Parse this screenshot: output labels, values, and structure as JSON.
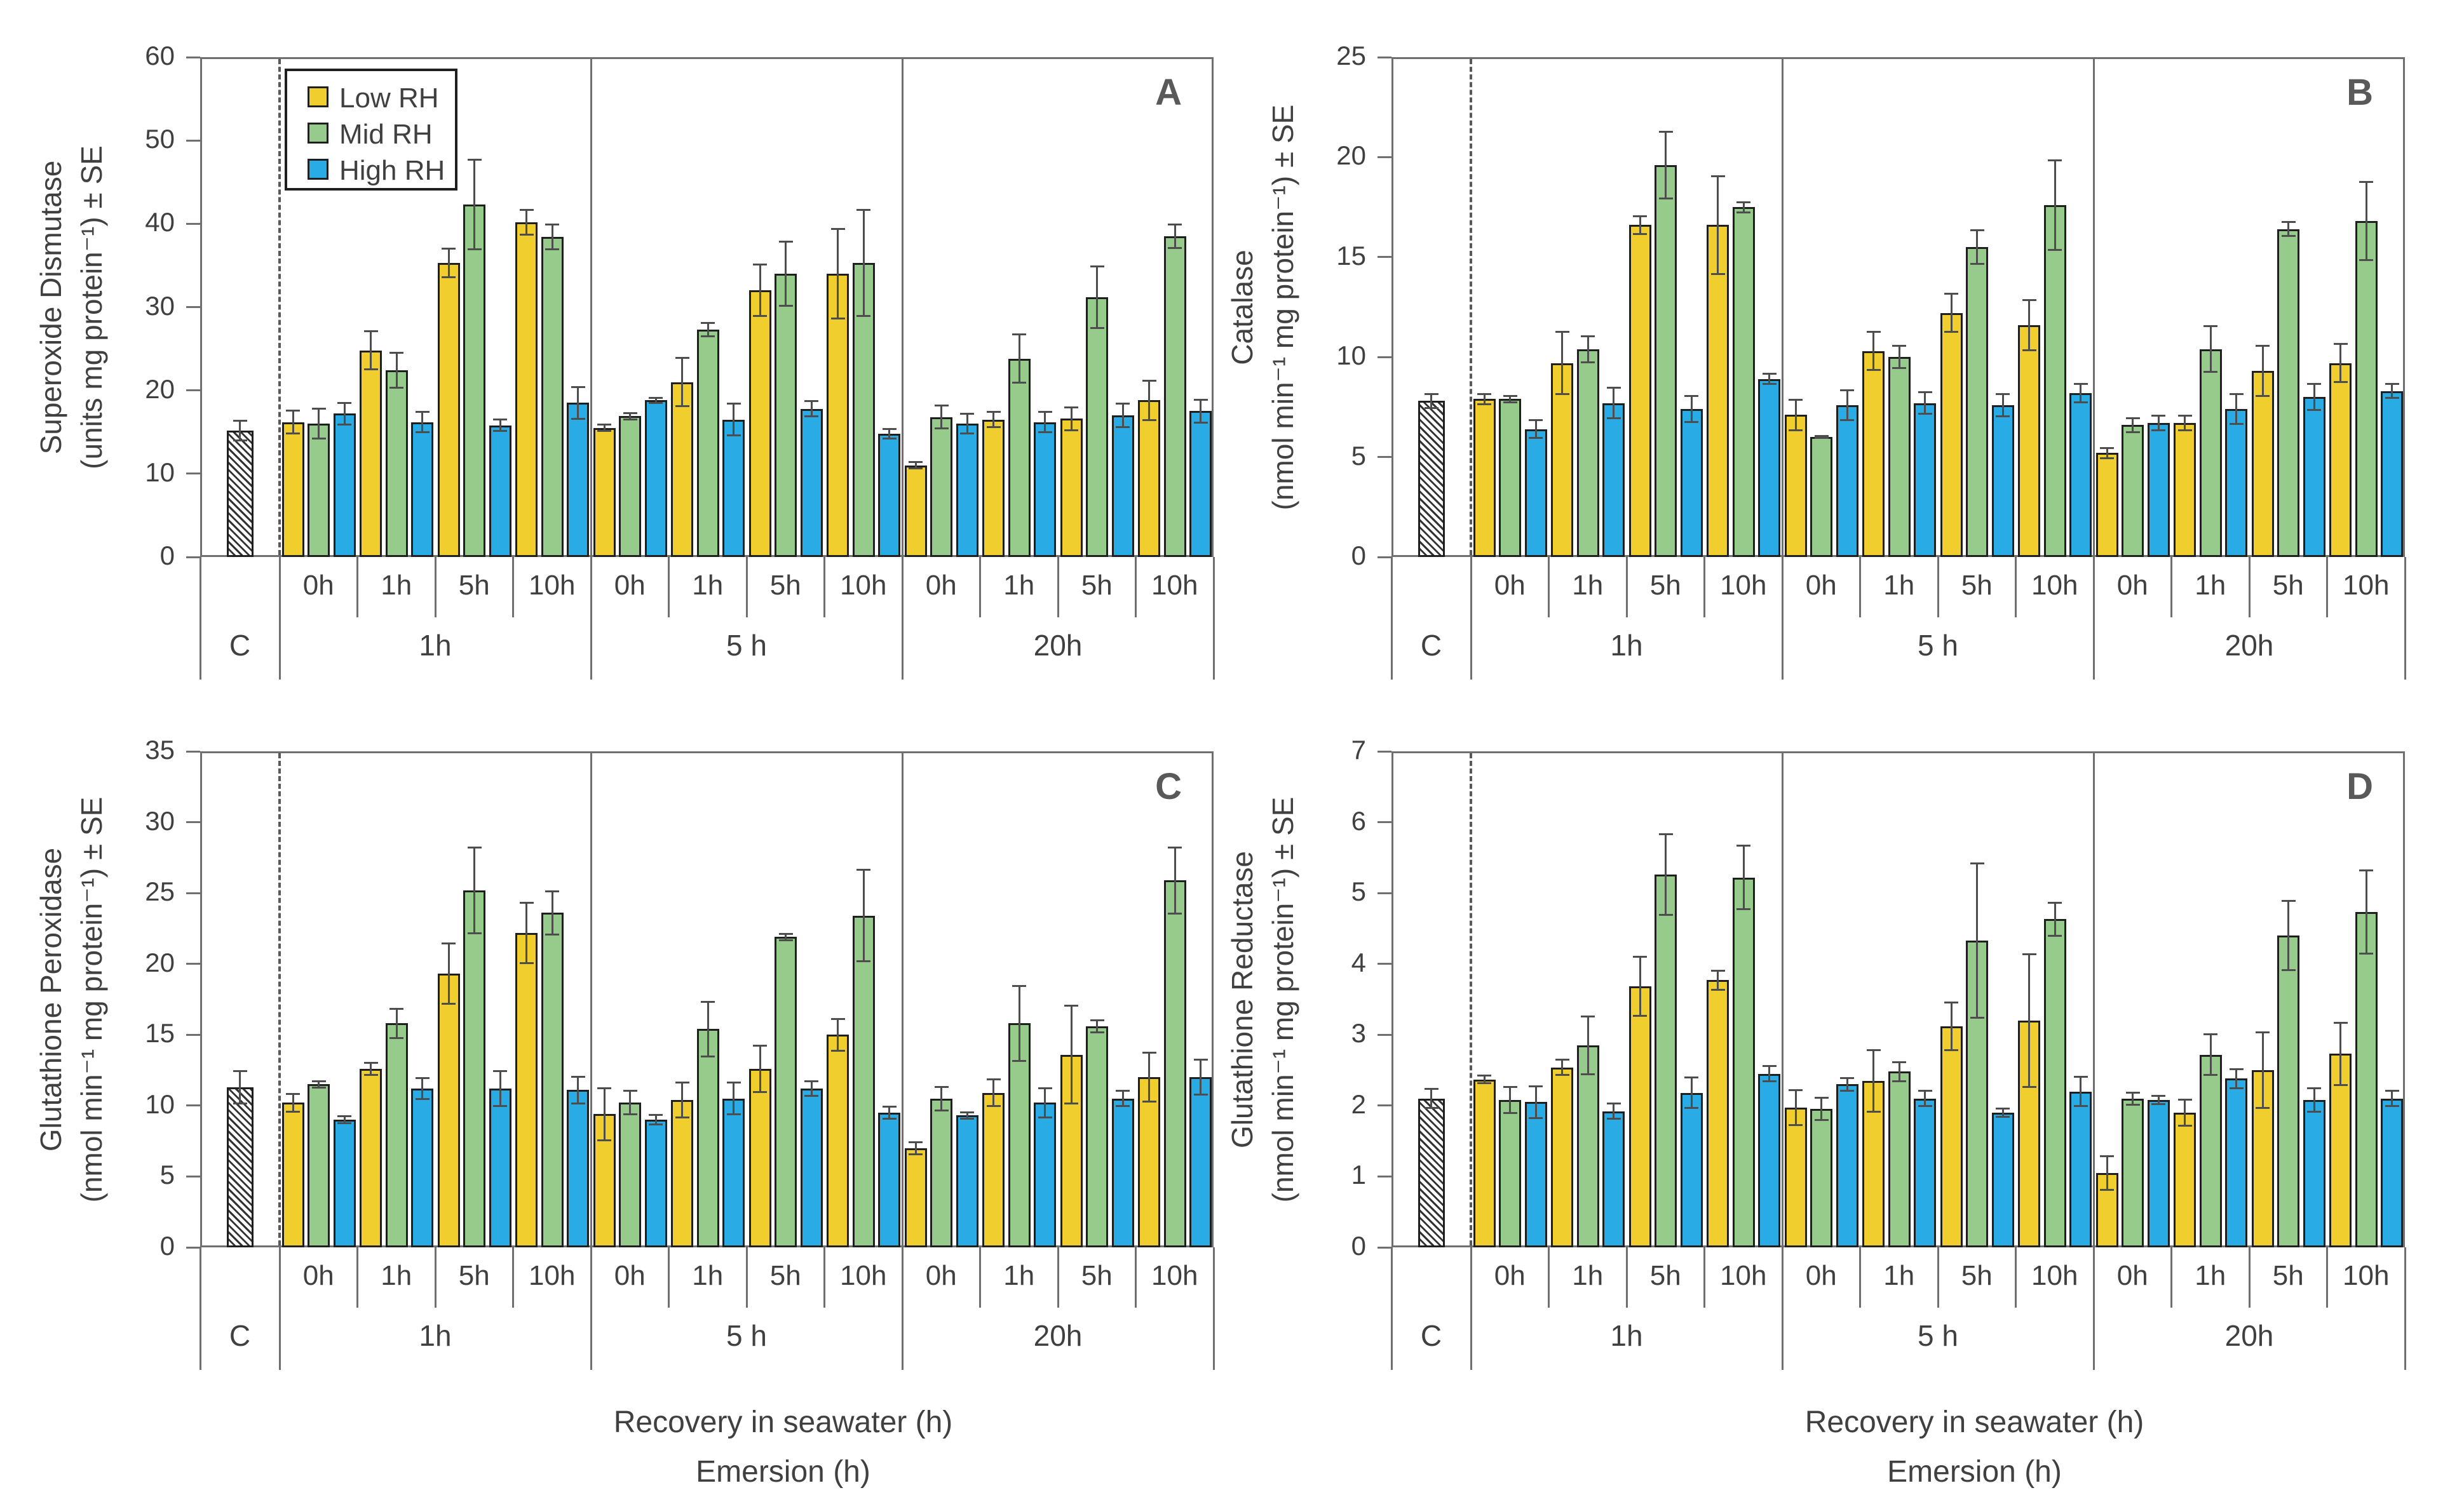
{
  "figure": {
    "control_label": "C",
    "recovery_labels": [
      "0h",
      "1h",
      "5h",
      "10h"
    ],
    "emersion_labels": [
      "1h",
      "5 h",
      "20h"
    ],
    "xtitle_line1": "Recovery in seawater (h)",
    "xtitle_line2": "Emersion (h)",
    "legend": {
      "items": [
        {
          "label": "Low RH",
          "color": "#F0CE2E"
        },
        {
          "label": "Mid RH",
          "color": "#97CB8C"
        },
        {
          "label": "High RH",
          "color": "#29ACE5"
        }
      ]
    },
    "colors": {
      "axis": "#6F6F6F",
      "text": "#404040",
      "panel_letter": "#595959",
      "error_bar": "#4D4D4D",
      "bar_border": "#1F1F1F"
    }
  },
  "chart_data": [
    {
      "type": "bar",
      "letter": "A",
      "ylabel": [
        "Superoxide Dismutase",
        "(units mg protein⁻¹) ± SE"
      ],
      "ylim": [
        0,
        60
      ],
      "ytick_step": 10,
      "series_names": [
        "Low RH",
        "Mid RH",
        "High RH"
      ],
      "recovery": [
        "0h",
        "1h",
        "5h",
        "10h"
      ],
      "control": {
        "label": "C",
        "value": 15.2,
        "se": 1.3
      },
      "groups": [
        {
          "emersion": "1h",
          "low": {
            "values": [
              16.2,
              24.8,
              35.3,
              40.2
            ],
            "se": [
              1.5,
              2.4,
              1.8,
              1.6
            ]
          },
          "mid": {
            "values": [
              16.0,
              22.4,
              42.3,
              38.4
            ],
            "se": [
              1.9,
              2.2,
              5.5,
              1.6
            ]
          },
          "high": {
            "values": [
              17.2,
              16.2,
              15.8,
              18.5
            ],
            "se": [
              1.4,
              1.3,
              0.8,
              2.0
            ]
          }
        },
        {
          "emersion": "5 h",
          "low": {
            "values": [
              15.5,
              21.0,
              32.0,
              34.0
            ],
            "se": [
              0.5,
              3.0,
              3.2,
              5.5
            ]
          },
          "mid": {
            "values": [
              16.9,
              27.3,
              34.0,
              35.3
            ],
            "se": [
              0.5,
              0.9,
              4.0,
              6.5
            ]
          },
          "high": {
            "values": [
              18.8,
              16.5,
              17.8,
              14.8
            ],
            "se": [
              0.4,
              2.0,
              1.0,
              0.7
            ]
          }
        },
        {
          "emersion": "20h",
          "low": {
            "values": [
              11.0,
              16.5,
              16.6,
              18.8
            ],
            "se": [
              0.5,
              1.0,
              1.5,
              2.5
            ]
          },
          "mid": {
            "values": [
              16.8,
              23.8,
              31.2,
              38.5
            ],
            "se": [
              1.5,
              3.0,
              3.8,
              1.5
            ]
          },
          "high": {
            "values": [
              16.0,
              16.2,
              17.0,
              17.5
            ],
            "se": [
              1.3,
              1.3,
              1.5,
              1.5
            ]
          }
        }
      ]
    },
    {
      "type": "bar",
      "letter": "B",
      "ylabel": [
        "Catalase",
        "(nmol min⁻¹ mg protein⁻¹) ± SE"
      ],
      "ylim": [
        0,
        25
      ],
      "ytick_step": 5,
      "series_names": [
        "Low RH",
        "Mid RH",
        "High RH"
      ],
      "recovery": [
        "0h",
        "1h",
        "5h",
        "10h"
      ],
      "control": {
        "label": "C",
        "value": 7.8,
        "se": 0.4
      },
      "groups": [
        {
          "emersion": "1h",
          "low": {
            "values": [
              7.9,
              9.7,
              16.6,
              16.6
            ],
            "se": [
              0.3,
              1.6,
              0.5,
              2.5
            ]
          },
          "mid": {
            "values": [
              7.9,
              10.4,
              19.6,
              17.5
            ],
            "se": [
              0.2,
              0.7,
              1.7,
              0.3
            ]
          },
          "high": {
            "values": [
              6.4,
              7.7,
              7.4,
              8.9
            ],
            "se": [
              0.5,
              0.8,
              0.7,
              0.3
            ]
          }
        },
        {
          "emersion": "5 h",
          "low": {
            "values": [
              7.1,
              10.3,
              12.2,
              11.6
            ],
            "se": [
              0.8,
              1.0,
              1.0,
              1.3
            ]
          },
          "mid": {
            "values": [
              6.0,
              10.0,
              15.5,
              17.6
            ],
            "se": [
              0.1,
              0.6,
              0.9,
              2.3
            ]
          },
          "high": {
            "values": [
              7.6,
              7.7,
              7.6,
              8.2
            ],
            "se": [
              0.8,
              0.6,
              0.6,
              0.5
            ]
          }
        },
        {
          "emersion": "20h",
          "low": {
            "values": [
              5.2,
              6.7,
              9.3,
              9.7
            ],
            "se": [
              0.3,
              0.4,
              1.3,
              1.0
            ]
          },
          "mid": {
            "values": [
              6.6,
              10.4,
              16.4,
              16.8
            ],
            "se": [
              0.4,
              1.2,
              0.4,
              2.0
            ]
          },
          "high": {
            "values": [
              6.7,
              7.4,
              8.0,
              8.3
            ],
            "se": [
              0.4,
              0.8,
              0.7,
              0.4
            ]
          }
        }
      ]
    },
    {
      "type": "bar",
      "letter": "C",
      "ylabel": [
        "Glutathione Peroxidase",
        "(nmol min⁻¹ mg protein⁻¹) ± SE"
      ],
      "ylim": [
        0,
        35
      ],
      "ytick_step": 5,
      "series_names": [
        "Low RH",
        "Mid RH",
        "High RH"
      ],
      "recovery": [
        "0h",
        "1h",
        "5h",
        "10h"
      ],
      "control": {
        "label": "C",
        "value": 11.3,
        "se": 1.2
      },
      "groups": [
        {
          "emersion": "1h",
          "low": {
            "values": [
              10.2,
              12.6,
              19.3,
              22.2
            ],
            "se": [
              0.7,
              0.5,
              2.2,
              2.2
            ]
          },
          "mid": {
            "values": [
              11.5,
              15.8,
              25.2,
              23.6
            ],
            "se": [
              0.3,
              1.1,
              3.1,
              1.6
            ]
          },
          "high": {
            "values": [
              9.0,
              11.2,
              11.2,
              11.1
            ],
            "se": [
              0.3,
              0.8,
              1.3,
              1.0
            ]
          }
        },
        {
          "emersion": "5 h",
          "low": {
            "values": [
              9.4,
              10.4,
              12.6,
              15.0
            ],
            "se": [
              1.9,
              1.3,
              1.7,
              1.2
            ]
          },
          "mid": {
            "values": [
              10.2,
              15.4,
              21.9,
              23.4
            ],
            "se": [
              0.9,
              2.0,
              0.3,
              3.3
            ]
          },
          "high": {
            "values": [
              9.0,
              10.5,
              11.2,
              9.5
            ],
            "se": [
              0.4,
              1.2,
              0.6,
              0.5
            ]
          }
        },
        {
          "emersion": "20h",
          "low": {
            "values": [
              7.0,
              10.9,
              13.6,
              12.0
            ],
            "se": [
              0.5,
              1.0,
              3.5,
              1.8
            ]
          },
          "mid": {
            "values": [
              10.5,
              15.8,
              15.6,
              25.9
            ],
            "se": [
              0.9,
              2.7,
              0.5,
              2.4
            ]
          },
          "high": {
            "values": [
              9.3,
              10.2,
              10.5,
              12.0
            ],
            "se": [
              0.3,
              1.1,
              0.6,
              1.3
            ]
          }
        }
      ]
    },
    {
      "type": "bar",
      "letter": "D",
      "ylabel": [
        "Glutathione Reductase",
        "(nmol min⁻¹ mg protein⁻¹) ± SE"
      ],
      "ylim": [
        0,
        7
      ],
      "ytick_step": 1,
      "series_names": [
        "Low RH",
        "Mid RH",
        "High RH"
      ],
      "recovery": [
        "0h",
        "1h",
        "5h",
        "10h"
      ],
      "control": {
        "label": "C",
        "value": 2.1,
        "se": 0.15
      },
      "groups": [
        {
          "emersion": "1h",
          "low": {
            "values": [
              2.37,
              2.54,
              3.68,
              3.77
            ],
            "se": [
              0.07,
              0.12,
              0.43,
              0.15
            ]
          },
          "mid": {
            "values": [
              2.08,
              2.85,
              5.26,
              5.22
            ],
            "se": [
              0.2,
              0.42,
              0.58,
              0.46
            ]
          },
          "high": {
            "values": [
              2.05,
              1.92,
              2.18,
              2.45
            ],
            "se": [
              0.24,
              0.12,
              0.23,
              0.12
            ]
          }
        },
        {
          "emersion": "5 h",
          "low": {
            "values": [
              1.97,
              2.35,
              3.12,
              3.2
            ],
            "se": [
              0.26,
              0.45,
              0.35,
              0.95
            ]
          },
          "mid": {
            "values": [
              1.95,
              2.48,
              4.33,
              4.63
            ],
            "se": [
              0.17,
              0.15,
              1.1,
              0.25
            ]
          },
          "high": {
            "values": [
              2.3,
              2.1,
              1.9,
              2.2
            ],
            "se": [
              0.1,
              0.12,
              0.07,
              0.22
            ]
          }
        },
        {
          "emersion": "20h",
          "low": {
            "values": [
              1.05,
              1.9,
              2.5,
              2.73
            ],
            "se": [
              0.25,
              0.2,
              0.55,
              0.45
            ]
          },
          "mid": {
            "values": [
              2.1,
              2.72,
              4.4,
              4.73
            ],
            "se": [
              0.1,
              0.3,
              0.5,
              0.6
            ]
          },
          "high": {
            "values": [
              2.08,
              2.38,
              2.08,
              2.1
            ],
            "se": [
              0.07,
              0.15,
              0.18,
              0.12
            ]
          }
        }
      ]
    }
  ]
}
